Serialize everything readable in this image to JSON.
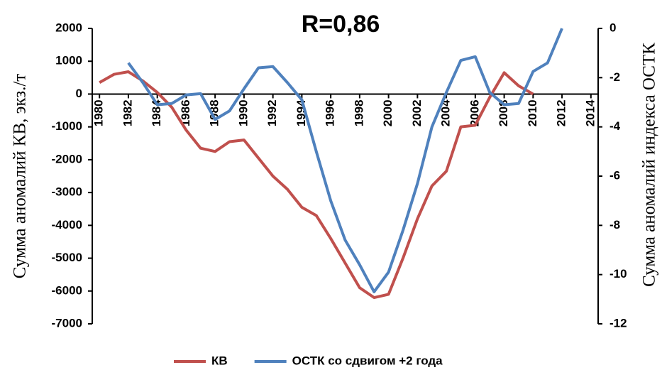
{
  "chart_data": {
    "type": "line",
    "title": "R=0,86",
    "y_label": "Сумма аномалий КВ, экз./т",
    "y2_label": "Сумма аномалий индекса ОСТК",
    "x": [
      1980,
      1981,
      1982,
      1983,
      1984,
      1985,
      1986,
      1987,
      1988,
      1989,
      1990,
      1991,
      1992,
      1993,
      1994,
      1995,
      1996,
      1997,
      1998,
      1999,
      2000,
      2001,
      2002,
      2003,
      2004,
      2005,
      2006,
      2007,
      2008,
      2009,
      2010,
      2011,
      2012
    ],
    "series": [
      {
        "name": "КВ",
        "color": "#c0504d",
        "values": [
          350,
          600,
          680,
          400,
          50,
          -400,
          -1100,
          -1650,
          -1750,
          -1450,
          -1400,
          -1950,
          -2500,
          -2900,
          -3450,
          -3700,
          -4400,
          -5150,
          -5900,
          -6200,
          -6100,
          -5000,
          -3800,
          -2800,
          -2350,
          -1000,
          -950,
          -100,
          650,
          250,
          0,
          null,
          null
        ]
      },
      {
        "name": "ОСТК со сдвигом +2 года",
        "color": "#4f81bd",
        "axis": "y2",
        "values": [
          null,
          null,
          -1.4,
          -2.2,
          -3.1,
          -3.05,
          -2.7,
          -2.65,
          -3.7,
          -3.35,
          -2.45,
          -1.6,
          -1.55,
          -2.2,
          -2.9,
          -5.0,
          -7.0,
          -8.6,
          -9.6,
          -10.7,
          -9.9,
          -8.2,
          -6.3,
          -4.0,
          -2.6,
          -1.3,
          -1.15,
          -2.6,
          -3.1,
          -3.05,
          -1.75,
          -1.4,
          0
        ]
      }
    ],
    "xlim": [
      1979.5,
      2014.5
    ],
    "xticks": [
      1980,
      1982,
      1984,
      1986,
      1988,
      1990,
      1992,
      1994,
      1996,
      1998,
      2000,
      2002,
      2004,
      2006,
      2008,
      2010,
      2012,
      2014
    ],
    "ylim": [
      -7000,
      2000
    ],
    "yticks": [
      -7000,
      -6000,
      -5000,
      -4000,
      -3000,
      -2000,
      -1000,
      0,
      1000,
      2000
    ],
    "y2lim": [
      -12,
      0
    ],
    "y2ticks": [
      -12,
      -10,
      -8,
      -6,
      -4,
      -2,
      0
    ],
    "legend": "bottom"
  }
}
